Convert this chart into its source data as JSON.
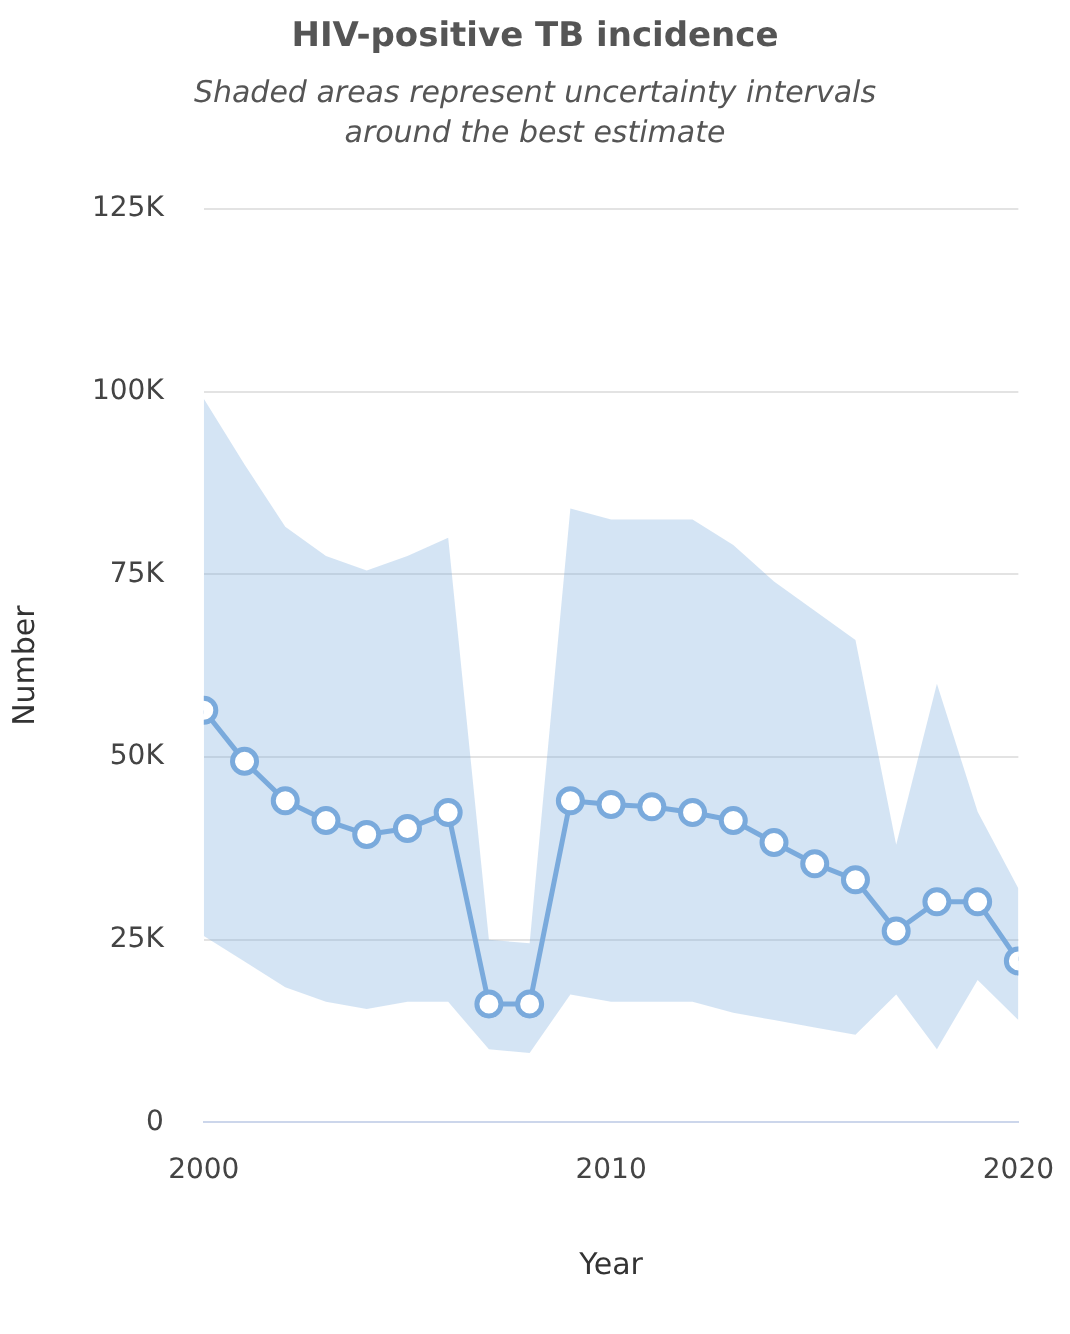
{
  "chart_data": {
    "type": "line",
    "title": "HIV-positive TB incidence",
    "subtitle": "Shaded areas represent uncertainty intervals around the best estimate",
    "xlabel": "Year",
    "ylabel": "Number",
    "x": [
      2000,
      2001,
      2002,
      2003,
      2004,
      2005,
      2006,
      2007,
      2008,
      2009,
      2010,
      2011,
      2012,
      2013,
      2014,
      2015,
      2016,
      2017,
      2018,
      2019,
      2020
    ],
    "series": [
      {
        "color": "#7aaadc",
        "values": [
          56400,
          49400,
          44000,
          41300,
          39400,
          40200,
          42400,
          16200,
          16200,
          44000,
          43500,
          43200,
          42400,
          41300,
          38300,
          35400,
          33200,
          26200,
          30200,
          30200,
          22100
        ],
        "lower": [
          25500,
          22000,
          18500,
          16500,
          15500,
          16500,
          16500,
          10000,
          9500,
          17500,
          16500,
          16500,
          16500,
          15000,
          14000,
          13000,
          12000,
          17500,
          10000,
          19500,
          14000
        ],
        "upper": [
          99000,
          90000,
          81500,
          77500,
          75500,
          77500,
          80000,
          25000,
          24500,
          84000,
          82500,
          82500,
          82500,
          79000,
          74000,
          70000,
          66000,
          38000,
          60000,
          42500,
          32000
        ]
      }
    ],
    "xlim": [
      2000,
      2020
    ],
    "xticks": [
      2000,
      2010,
      2020
    ],
    "ylim": [
      0,
      125000
    ],
    "yticks": [
      {
        "value": 0,
        "label": "0"
      },
      {
        "value": 25000,
        "label": "25K"
      },
      {
        "value": 50000,
        "label": "50K"
      },
      {
        "value": 75000,
        "label": "75K"
      },
      {
        "value": 100000,
        "label": "100K"
      },
      {
        "value": 125000,
        "label": "125K"
      }
    ],
    "grid": "y",
    "legend": false,
    "marker": "circle",
    "line_style": "solid"
  }
}
